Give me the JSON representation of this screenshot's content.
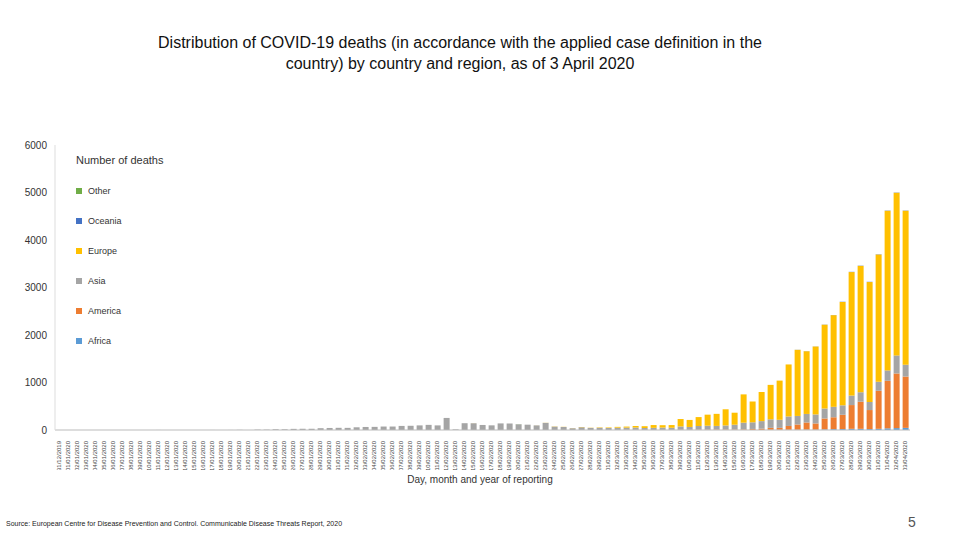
{
  "chart_data": {
    "type": "bar",
    "stacked": true,
    "grid": false,
    "legend": "upper left",
    "title": "Distribution of COVID-19 deaths (in accordance with the applied case definition in the country) by country and region, as of 3 April 2020",
    "y_label": "Number of deaths",
    "x_label": "Day, month and year of reporting",
    "source": "Source: European Centre for Disease Prevention and Control. Communicable Disease Threats Report, 2020",
    "page": "5",
    "ylim": [
      0,
      6000
    ],
    "yticks": [
      0,
      1000,
      2000,
      3000,
      4000,
      5000,
      6000
    ],
    "categories": [
      "31/12/2019",
      "01/01/2020",
      "02/01/2020",
      "03/01/2020",
      "04/01/2020",
      "05/01/2020",
      "06/01/2020",
      "07/01/2020",
      "08/01/2020",
      "09/01/2020",
      "10/01/2020",
      "11/01/2020",
      "12/01/2020",
      "13/01/2020",
      "14/01/2020",
      "15/01/2020",
      "16/01/2020",
      "17/01/2020",
      "18/01/2020",
      "19/01/2020",
      "20/01/2020",
      "21/01/2020",
      "22/01/2020",
      "23/01/2020",
      "24/01/2020",
      "25/01/2020",
      "26/01/2020",
      "27/01/2020",
      "28/01/2020",
      "29/01/2020",
      "30/01/2020",
      "31/01/2020",
      "01/02/2020",
      "02/02/2020",
      "03/02/2020",
      "04/02/2020",
      "05/02/2020",
      "06/02/2020",
      "07/02/2020",
      "08/02/2020",
      "09/02/2020",
      "10/02/2020",
      "11/02/2020",
      "12/02/2020",
      "13/02/2020",
      "14/02/2020",
      "15/02/2020",
      "16/02/2020",
      "17/02/2020",
      "18/02/2020",
      "19/02/2020",
      "20/02/2020",
      "21/02/2020",
      "22/02/2020",
      "23/02/2020",
      "24/02/2020",
      "25/02/2020",
      "26/02/2020",
      "27/02/2020",
      "28/02/2020",
      "29/02/2020",
      "01/03/2020",
      "02/03/2020",
      "03/03/2020",
      "04/03/2020",
      "05/03/2020",
      "06/03/2020",
      "07/03/2020",
      "08/03/2020",
      "09/03/2020",
      "10/03/2020",
      "11/03/2020",
      "12/03/2020",
      "13/03/2020",
      "14/03/2020",
      "15/03/2020",
      "16/03/2020",
      "17/03/2020",
      "18/03/2020",
      "19/03/2020",
      "20/03/2020",
      "21/03/2020",
      "22/03/2020",
      "23/03/2020",
      "24/03/2020",
      "25/03/2020",
      "26/03/2020",
      "27/03/2020",
      "28/03/2020",
      "29/03/2020",
      "30/03/2020",
      "31/03/2020",
      "01/04/2020",
      "02/04/2020",
      "03/04/2020"
    ],
    "series": [
      {
        "name": "Africa",
        "color": "#5b9bd5",
        "values": [
          0,
          0,
          0,
          0,
          0,
          0,
          0,
          0,
          0,
          0,
          0,
          0,
          0,
          0,
          0,
          0,
          0,
          0,
          0,
          0,
          0,
          0,
          0,
          0,
          0,
          0,
          0,
          0,
          0,
          0,
          0,
          0,
          0,
          0,
          0,
          0,
          0,
          0,
          0,
          0,
          0,
          0,
          0,
          0,
          0,
          0,
          0,
          0,
          0,
          0,
          0,
          0,
          0,
          0,
          0,
          0,
          0,
          0,
          0,
          0,
          0,
          0,
          0,
          0,
          0,
          0,
          0,
          0,
          0,
          1,
          0,
          1,
          1,
          0,
          1,
          1,
          2,
          2,
          2,
          5,
          5,
          5,
          6,
          8,
          8,
          12,
          18,
          20,
          25,
          25,
          20,
          25,
          35,
          40,
          45
        ]
      },
      {
        "name": "America",
        "color": "#ed7d31",
        "values": [
          0,
          0,
          0,
          0,
          0,
          0,
          0,
          0,
          0,
          0,
          0,
          0,
          0,
          0,
          0,
          0,
          0,
          0,
          0,
          0,
          0,
          0,
          0,
          0,
          0,
          0,
          0,
          0,
          0,
          0,
          0,
          0,
          0,
          0,
          0,
          0,
          0,
          0,
          0,
          0,
          0,
          0,
          0,
          0,
          0,
          0,
          0,
          0,
          0,
          0,
          0,
          0,
          0,
          0,
          0,
          0,
          0,
          0,
          0,
          0,
          0,
          1,
          1,
          5,
          3,
          2,
          1,
          2,
          3,
          4,
          4,
          8,
          9,
          11,
          10,
          10,
          12,
          20,
          25,
          40,
          40,
          80,
          110,
          150,
          130,
          230,
          250,
          300,
          500,
          570,
          400,
          800,
          1000,
          1150,
          1080
        ]
      },
      {
        "name": "Asia",
        "color": "#a5a5a5",
        "values": [
          0,
          0,
          0,
          0,
          0,
          0,
          0,
          0,
          0,
          0,
          0,
          1,
          0,
          0,
          0,
          0,
          0,
          1,
          0,
          1,
          3,
          0,
          8,
          8,
          16,
          15,
          24,
          26,
          26,
          38,
          43,
          46,
          45,
          57,
          64,
          66,
          73,
          73,
          86,
          89,
          97,
          108,
          97,
          254,
          13,
          143,
          142,
          106,
          98,
          139,
          137,
          120,
          112,
          97,
          150,
          71,
          64,
          37,
          58,
          44,
          47,
          41,
          48,
          45,
          49,
          40,
          45,
          50,
          45,
          70,
          60,
          75,
          80,
          75,
          85,
          100,
          140,
          140,
          160,
          180,
          170,
          200,
          180,
          180,
          190,
          210,
          220,
          200,
          200,
          200,
          170,
          190,
          220,
          380,
          250
        ]
      },
      {
        "name": "Europe",
        "color": "#ffc000",
        "values": [
          0,
          0,
          0,
          0,
          0,
          0,
          0,
          0,
          0,
          0,
          0,
          0,
          0,
          0,
          0,
          0,
          0,
          0,
          0,
          0,
          0,
          0,
          0,
          0,
          0,
          0,
          0,
          0,
          0,
          0,
          0,
          0,
          0,
          0,
          0,
          0,
          0,
          0,
          0,
          0,
          0,
          0,
          0,
          0,
          0,
          0,
          1,
          0,
          0,
          0,
          0,
          0,
          0,
          1,
          2,
          4,
          3,
          2,
          5,
          4,
          8,
          11,
          17,
          22,
          32,
          38,
          58,
          49,
          56,
          156,
          148,
          188,
          233,
          254,
          340,
          253,
          596,
          438,
          613,
          725,
          825,
          1095,
          1392,
          1320,
          1430,
          1765,
          1930,
          2175,
          2600,
          2660,
          2525,
          2680,
          3360,
          3425,
          3240
        ]
      },
      {
        "name": "Oceania",
        "color": "#4472c4",
        "values": [
          0,
          0,
          0,
          0,
          0,
          0,
          0,
          0,
          0,
          0,
          0,
          0,
          0,
          0,
          0,
          0,
          0,
          0,
          0,
          0,
          0,
          0,
          0,
          0,
          0,
          0,
          0,
          0,
          0,
          0,
          0,
          0,
          0,
          0,
          0,
          0,
          0,
          0,
          0,
          0,
          0,
          0,
          0,
          0,
          0,
          0,
          0,
          0,
          0,
          0,
          0,
          0,
          0,
          0,
          0,
          0,
          0,
          0,
          0,
          0,
          0,
          0,
          0,
          0,
          0,
          0,
          0,
          0,
          0,
          0,
          0,
          0,
          0,
          0,
          0,
          0,
          0,
          0,
          0,
          0,
          0,
          0,
          2,
          2,
          2,
          3,
          2,
          5,
          5,
          5,
          5,
          5,
          5,
          5,
          5
        ]
      },
      {
        "name": "Other",
        "color": "#70ad47",
        "values": [
          0,
          0,
          0,
          0,
          0,
          0,
          0,
          0,
          0,
          0,
          0,
          0,
          0,
          0,
          0,
          0,
          0,
          0,
          0,
          0,
          0,
          0,
          0,
          0,
          0,
          0,
          0,
          0,
          0,
          0,
          0,
          0,
          0,
          0,
          0,
          0,
          0,
          0,
          0,
          0,
          0,
          0,
          0,
          0,
          0,
          0,
          0,
          0,
          0,
          0,
          0,
          2,
          0,
          0,
          0,
          0,
          0,
          0,
          0,
          0,
          0,
          0,
          0,
          0,
          0,
          0,
          0,
          0,
          0,
          0,
          0,
          0,
          0,
          0,
          0,
          0,
          0,
          0,
          0,
          0,
          0,
          0,
          0,
          0,
          0,
          0,
          0,
          0,
          0,
          0,
          0,
          0,
          0,
          0,
          0
        ]
      }
    ]
  }
}
